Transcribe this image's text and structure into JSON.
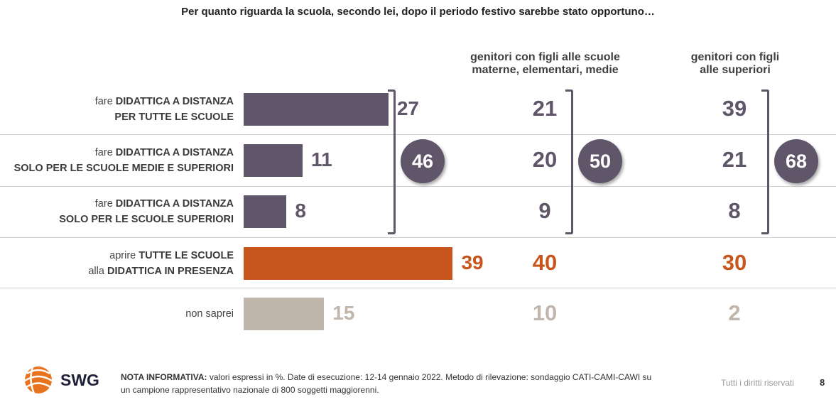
{
  "title": "Per quanto riguarda la scuola, secondo lei, dopo il periodo festivo sarebbe stato opportuno…",
  "columns": {
    "col2_header": [
      "genitori con figli alle scuole",
      "materne, elementari, medie"
    ],
    "col3_header": [
      "genitori con figli",
      "alle superiori"
    ]
  },
  "colors": {
    "purple": "#5f566a",
    "orange": "#c8561c",
    "beige": "#c1b6ab"
  },
  "chart_data": {
    "type": "bar",
    "orientation": "horizontal",
    "unit": "%",
    "categories": [
      {
        "pre": "fare ",
        "bold1": "DIDATTICA A DISTANZA",
        "mid": "",
        "bold2": "PER TUTTE LE SCUOLE",
        "post": ""
      },
      {
        "pre": "fare ",
        "bold1": "DIDATTICA A DISTANZA",
        "mid": "",
        "bold2": "SOLO PER LE SCUOLE MEDIE E SUPERIORI",
        "post": ""
      },
      {
        "pre": "fare ",
        "bold1": "DIDATTICA A DISTANZA",
        "mid": "",
        "bold2": "SOLO PER LE SCUOLE SUPERIORI",
        "post": ""
      },
      {
        "pre": "aprire ",
        "bold1": "TUTTE LE SCUOLE",
        "mid": "alla ",
        "bold2": "DIDATTICA IN PRESENZA",
        "post": ""
      },
      {
        "pre": "non saprei",
        "bold1": "",
        "mid": "",
        "bold2": "",
        "post": ""
      }
    ],
    "series": [
      {
        "values": [
          27,
          11,
          8,
          39,
          15
        ]
      },
      {
        "values": [
          21,
          20,
          9,
          40,
          10
        ]
      },
      {
        "values": [
          39,
          21,
          8,
          30,
          2
        ]
      }
    ],
    "group_totals": [
      46,
      50,
      68
    ],
    "xlim": [
      0,
      100
    ]
  },
  "footer": {
    "note_label": "NOTA INFORMATIVA:",
    "note_line1": " valori espressi in %. Date di esecuzione: 12-14 gennaio 2022. Metodo di rilevazione: sondaggio CATI-CAMI-CAWI su",
    "note_line2": "un campione rappresentativo nazionale di 800 soggetti maggiorenni.",
    "rights": "Tutti i diritti riservati",
    "page": "8",
    "logo_text": "SWG"
  }
}
